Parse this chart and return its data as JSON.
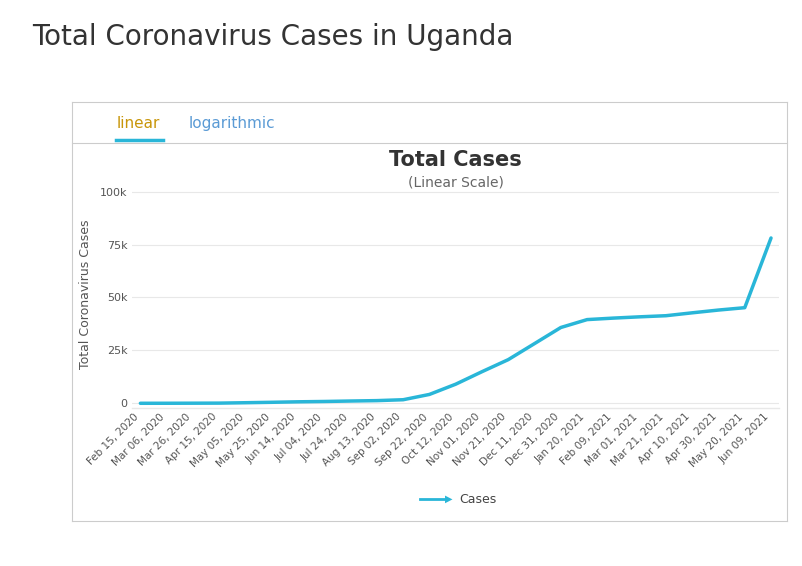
{
  "title": "Total Coronavirus Cases in Uganda",
  "chart_title": "Total Cases",
  "chart_subtitle": "(Linear Scale)",
  "ylabel": "Total Coronavirus Cases",
  "tab_linear": "linear",
  "tab_logarithmic": "logarithmic",
  "legend_label": "Cases",
  "background_color": "#ffffff",
  "panel_color": "#ffffff",
  "panel_border_color": "#cccccc",
  "line_color": "#29b6d8",
  "grid_color": "#e8e8e8",
  "ytick_labels": [
    "0",
    "25k",
    "50k",
    "75k",
    "100k"
  ],
  "ytick_values": [
    0,
    25000,
    50000,
    75000,
    100000
  ],
  "ylim": [
    -2000,
    105000
  ],
  "dates": [
    "Feb 15, 2020",
    "Mar 06, 2020",
    "Mar 26, 2020",
    "Apr 15, 2020",
    "May 05, 2020",
    "May 25, 2020",
    "Jun 14, 2020",
    "Jul 04, 2020",
    "Jul 24, 2020",
    "Aug 13, 2020",
    "Sep 02, 2020",
    "Sep 22, 2020",
    "Oct 12, 2020",
    "Nov 01, 2020",
    "Nov 21, 2020",
    "Dec 11, 2020",
    "Dec 31, 2020",
    "Jan 20, 2021",
    "Feb 09, 2021",
    "Mar 01, 2021",
    "Mar 21, 2021",
    "Apr 10, 2021",
    "Apr 30, 2021",
    "May 20, 2021",
    "Jun 09, 2021"
  ],
  "values": [
    0,
    14,
    44,
    79,
    269,
    469,
    700,
    855,
    1072,
    1262,
    1679,
    4189,
    9026,
    14932,
    20636,
    28216,
    35819,
    39553,
    40261,
    40862,
    41390,
    42757,
    44064,
    45185,
    78122
  ],
  "title_fontsize": 20,
  "tab_fontsize": 11,
  "chart_title_fontsize": 15,
  "chart_subtitle_fontsize": 10,
  "ylabel_fontsize": 9,
  "tick_fontsize": 8,
  "tab_linear_color": "#c8960a",
  "tab_logarithmic_color": "#5b9bd5",
  "title_color": "#333333",
  "axis_color": "#555555"
}
